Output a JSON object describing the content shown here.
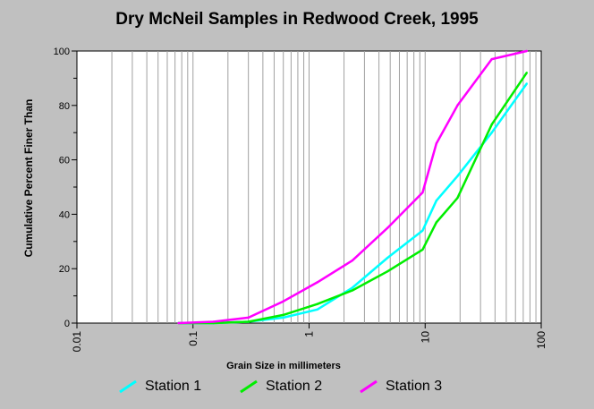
{
  "chart_data": {
    "type": "line",
    "title": "Dry McNeil Samples in Redwood Creek, 1995",
    "xlabel": "Grain Size in millimeters",
    "ylabel": "Cumulative Percent Finer Than",
    "x_scale": "log",
    "xlim": [
      0.01,
      100
    ],
    "ylim": [
      0,
      100
    ],
    "x_ticks": [
      "0.01",
      "0.1",
      "1",
      "10",
      "100"
    ],
    "y_ticks": [
      "0",
      "20",
      "40",
      "60",
      "80",
      "100"
    ],
    "grid": "vertical",
    "legend_position": "bottom",
    "series": [
      {
        "name": "Station 1",
        "color": "#00ffff",
        "points": [
          [
            0.075,
            0
          ],
          [
            0.15,
            0
          ],
          [
            0.3,
            0.5
          ],
          [
            0.6,
            2
          ],
          [
            1.18,
            5
          ],
          [
            2.36,
            13
          ],
          [
            4.75,
            24
          ],
          [
            9.5,
            34
          ],
          [
            12.5,
            45
          ],
          [
            19,
            54
          ],
          [
            37.5,
            70
          ],
          [
            75,
            88
          ]
        ]
      },
      {
        "name": "Station 2",
        "color": "#00ee00",
        "points": [
          [
            0.075,
            0
          ],
          [
            0.15,
            0
          ],
          [
            0.3,
            0.5
          ],
          [
            0.6,
            3
          ],
          [
            1.18,
            7
          ],
          [
            2.36,
            12
          ],
          [
            4.75,
            19
          ],
          [
            9.5,
            27
          ],
          [
            12.5,
            37
          ],
          [
            19,
            46
          ],
          [
            37.5,
            73
          ],
          [
            75,
            92
          ]
        ]
      },
      {
        "name": "Station 3",
        "color": "#ff00ff",
        "points": [
          [
            0.075,
            0
          ],
          [
            0.15,
            0.5
          ],
          [
            0.3,
            2
          ],
          [
            0.6,
            8
          ],
          [
            1.18,
            15
          ],
          [
            2.36,
            23
          ],
          [
            4.75,
            35
          ],
          [
            9.5,
            48
          ],
          [
            12.5,
            66
          ],
          [
            19,
            80
          ],
          [
            37.5,
            97
          ],
          [
            75,
            100
          ]
        ]
      }
    ]
  }
}
